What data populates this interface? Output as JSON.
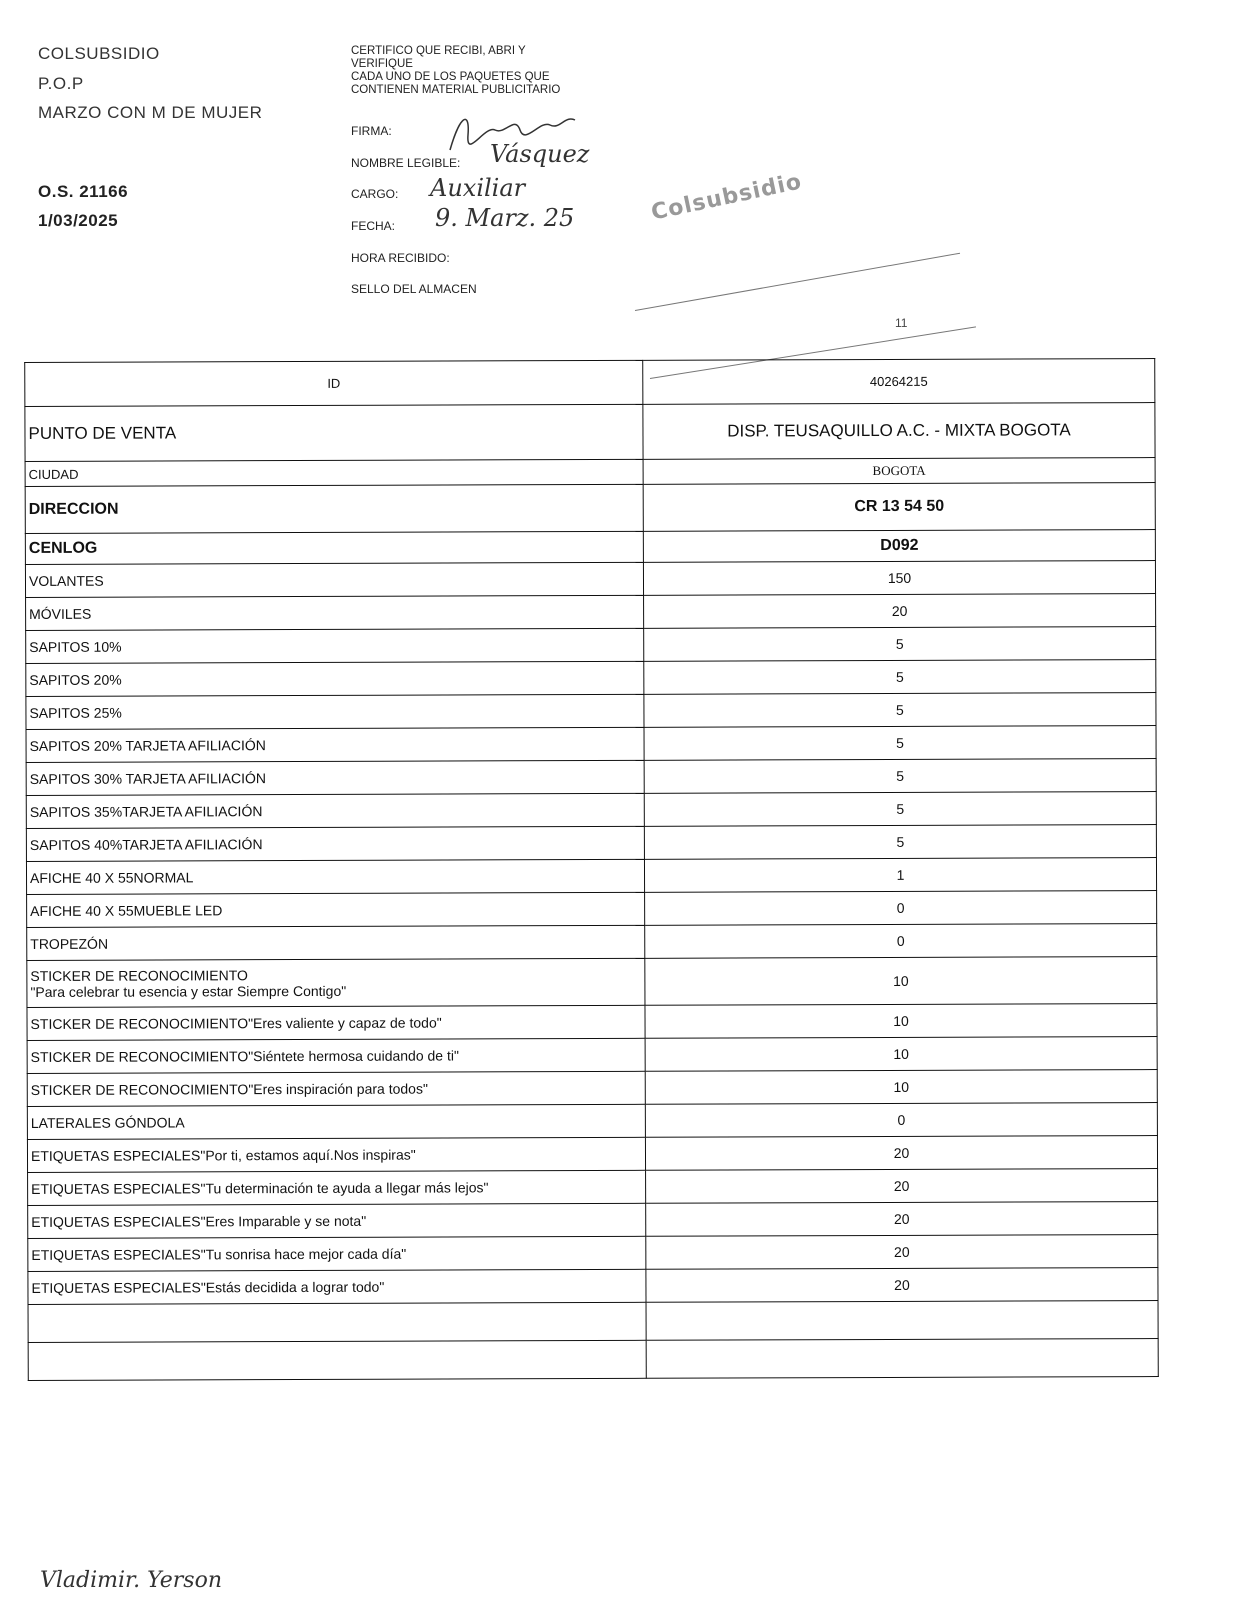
{
  "header_left": {
    "org": "COLSUBSIDIO",
    "line2": "P.O.P",
    "campaign": "MARZO CON M DE MUJER",
    "order": "O.S. 21166",
    "date": "1/03/2025"
  },
  "certification": {
    "lines": [
      "CERTIFICO QUE RECIBI, ABRI Y",
      "VERIFIQUE",
      "CADA  UNO DE LOS PAQUETES QUE",
      "CONTIENEN MATERIAL PUBLICITARIO"
    ],
    "firma_label": "FIRMA:",
    "nombre_label": "NOMBRE LEGIBLE:",
    "nombre_value": "Vásquez",
    "cargo_label": "CARGO:",
    "cargo_value": "Auxiliar",
    "fecha_label": "FECHA:",
    "fecha_value": "9. Marz. 25",
    "hora_label": "HORA RECIBIDO:",
    "sello_label": "SELLO DEL ALMACEN",
    "stamp_text": "Colsubsidio",
    "mark": "11"
  },
  "table": {
    "id_label": "ID",
    "id_value": "40264215",
    "punto_label": "PUNTO DE VENTA",
    "punto_value": "DISP. TEUSAQUILLO A.C. - MIXTA BOGOTA",
    "ciudad_label": "CIUDAD",
    "ciudad_value": "BOGOTA",
    "direccion_label": "DIRECCION",
    "direccion_value": "CR 13 54 50",
    "cenlog_label": "CENLOG",
    "cenlog_value": "D092",
    "items": [
      {
        "name": "VOLANTES",
        "qty": "150"
      },
      {
        "name": "MÓVILES",
        "qty": "20"
      },
      {
        "name": "SAPITOS 10%",
        "qty": "5"
      },
      {
        "name": "SAPITOS 20%",
        "qty": "5"
      },
      {
        "name": "SAPITOS 25%",
        "qty": "5"
      },
      {
        "name": "SAPITOS 20% TARJETA AFILIACIÓN",
        "qty": "5"
      },
      {
        "name": "SAPITOS 30% TARJETA AFILIACIÓN",
        "qty": "5"
      },
      {
        "name": "SAPITOS 35%TARJETA AFILIACIÓN",
        "qty": "5"
      },
      {
        "name": "SAPITOS 40%TARJETA AFILIACIÓN",
        "qty": "5"
      },
      {
        "name": "AFICHE 40 X 55NORMAL",
        "qty": "1"
      },
      {
        "name": "AFICHE 40 X 55MUEBLE LED",
        "qty": "0"
      },
      {
        "name": "TROPEZÓN",
        "qty": "0"
      },
      {
        "name": "STICKER DE RECONOCIMIENTO",
        "name2": "\"Para celebrar tu esencia y estar Siempre Contigo\"",
        "qty": "10"
      },
      {
        "name": "STICKER DE RECONOCIMIENTO\"Eres valiente y capaz de todo\"",
        "qty": "10"
      },
      {
        "name": "STICKER DE RECONOCIMIENTO\"Siéntete hermosa cuidando de ti\"",
        "qty": "10"
      },
      {
        "name": "STICKER DE RECONOCIMIENTO\"Eres inspiración para todos\"",
        "qty": "10"
      },
      {
        "name": "LATERALES GÓNDOLA",
        "qty": "0"
      },
      {
        "name": "ETIQUETAS ESPECIALES\"Por ti, estamos aquí.Nos inspiras\"",
        "qty": "20"
      },
      {
        "name": "ETIQUETAS ESPECIALES\"Tu determinación te ayuda a llegar más lejos\"",
        "qty": "20"
      },
      {
        "name": "ETIQUETAS ESPECIALES\"Eres Imparable y se nota\"",
        "qty": "20"
      },
      {
        "name": "ETIQUETAS ESPECIALES\"Tu sonrisa hace mejor cada día\"",
        "qty": "20"
      },
      {
        "name": "ETIQUETAS ESPECIALES\"Estás decidida a lograr todo\"",
        "qty": "20"
      }
    ]
  },
  "footer": {
    "signature": "Vladimir. Yerson"
  }
}
